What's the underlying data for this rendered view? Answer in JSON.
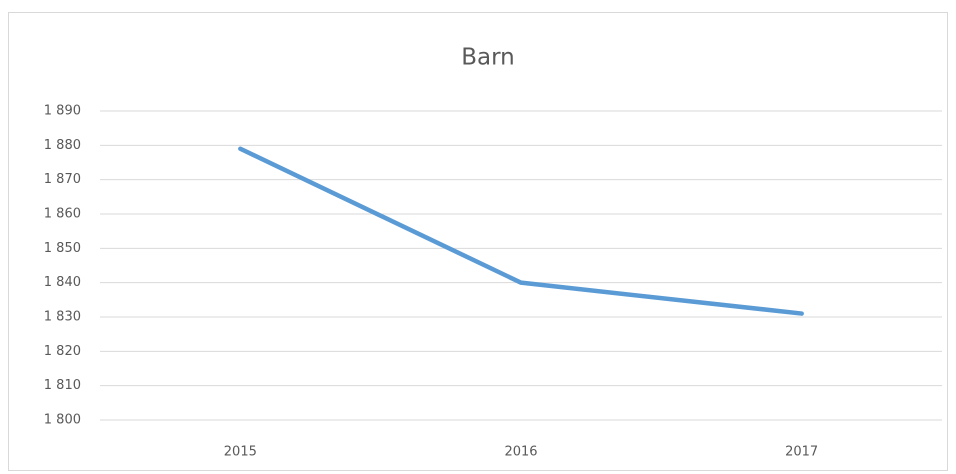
{
  "chart_data": {
    "type": "line",
    "title": "Barn",
    "categories": [
      "2015",
      "2016",
      "2017"
    ],
    "values": [
      1879,
      1840,
      1831
    ],
    "color": "#5b9bd5",
    "ylim": [
      1800,
      1890
    ],
    "yticks": [
      {
        "value": 1800,
        "label": "1 800"
      },
      {
        "value": 1810,
        "label": "1 810"
      },
      {
        "value": 1820,
        "label": "1 820"
      },
      {
        "value": 1830,
        "label": "1 830"
      },
      {
        "value": 1840,
        "label": "1 840"
      },
      {
        "value": 1850,
        "label": "1 850"
      },
      {
        "value": 1860,
        "label": "1 860"
      },
      {
        "value": 1870,
        "label": "1 870"
      },
      {
        "value": 1880,
        "label": "1 880"
      },
      {
        "value": 1890,
        "label": "1 890"
      }
    ],
    "grid": true
  }
}
